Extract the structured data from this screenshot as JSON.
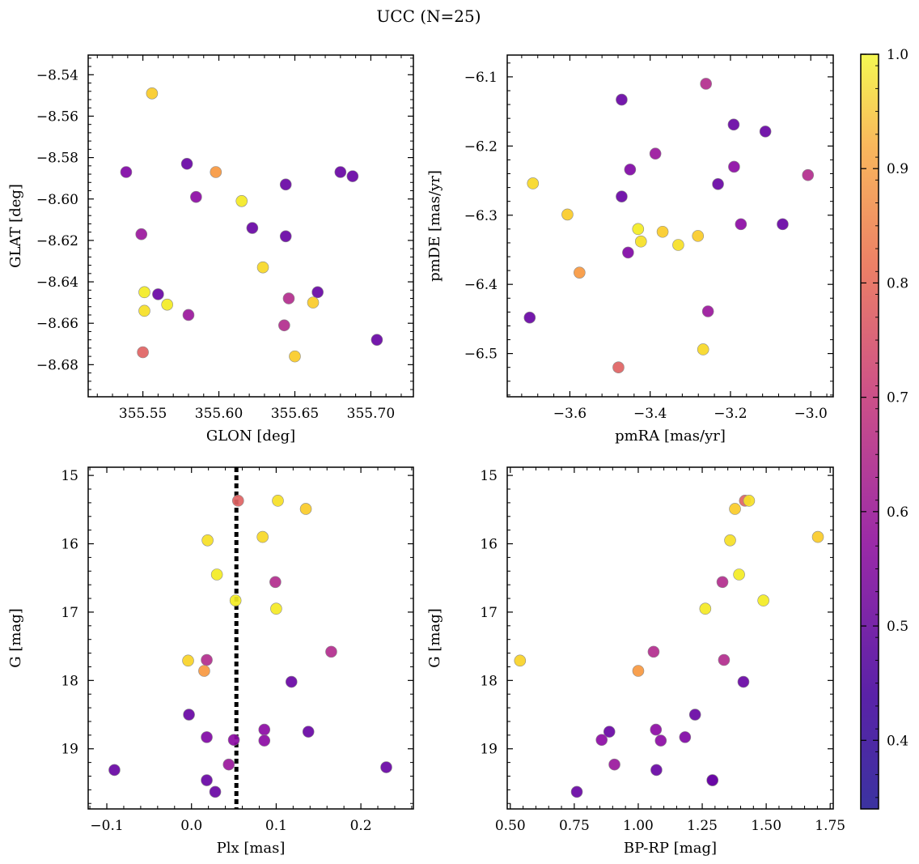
{
  "figure": {
    "title": "UCC (N=25)"
  },
  "colorbar": {
    "min": 0.34,
    "max": 1.0,
    "ticks": [
      "0.4",
      "0.5",
      "0.6",
      "0.7",
      "0.8",
      "0.9",
      "1.0"
    ],
    "colormap": "plasma"
  },
  "chart_data": [
    {
      "type": "scatter",
      "xlabel": "GLON [deg]",
      "ylabel": "GLAT [deg]",
      "xlim": [
        355.514,
        355.728
      ],
      "ylim": [
        -8.6955,
        -8.5305
      ],
      "xticks": [
        355.55,
        355.6,
        355.65,
        355.7
      ],
      "xticklabels": [
        "355.55",
        "355.60",
        "355.65",
        "355.70"
      ],
      "yticks": [
        -8.68,
        -8.66,
        -8.64,
        -8.62,
        -8.6,
        -8.58,
        -8.56,
        -8.54
      ],
      "yticklabels": [
        "−8.68",
        "−8.66",
        "−8.64",
        "−8.62",
        "−8.60",
        "−8.58",
        "−8.56",
        "−8.54"
      ],
      "x": [
        355.556,
        355.539,
        355.579,
        355.598,
        355.585,
        355.644,
        355.68,
        355.688,
        355.615,
        355.549,
        355.622,
        355.644,
        355.629,
        355.551,
        355.56,
        355.665,
        355.646,
        355.566,
        355.662,
        355.551,
        355.58,
        355.643,
        355.704,
        355.65,
        355.55
      ],
      "y": [
        -8.549,
        -8.587,
        -8.583,
        -8.587,
        -8.599,
        -8.593,
        -8.587,
        -8.589,
        -8.601,
        -8.617,
        -8.614,
        -8.618,
        -8.633,
        -8.645,
        -8.646,
        -8.645,
        -8.648,
        -8.651,
        -8.65,
        -8.654,
        -8.656,
        -8.661,
        -8.668,
        -8.676,
        -8.674
      ],
      "c": [
        0.86,
        0.42,
        0.38,
        0.75,
        0.44,
        0.38,
        0.38,
        0.38,
        0.95,
        0.47,
        0.38,
        0.38,
        0.9,
        0.96,
        0.38,
        0.38,
        0.52,
        0.96,
        0.86,
        0.92,
        0.47,
        0.52,
        0.38,
        0.86,
        0.64
      ]
    },
    {
      "type": "scatter",
      "xlabel": "pmRA [mas/yr]",
      "ylabel": "pmDE [mas/yr]",
      "xlim": [
        -3.756,
        -2.944
      ],
      "ylim": [
        -6.5625,
        -6.0685
      ],
      "xticks": [
        -3.6,
        -3.4,
        -3.2,
        -3.0
      ],
      "xticklabels": [
        "−3.6",
        "−3.4",
        "−3.2",
        "−3.0"
      ],
      "yticks": [
        -6.5,
        -6.4,
        -6.3,
        -6.2,
        -6.1
      ],
      "yticklabels": [
        "−6.5",
        "−6.4",
        "−6.3",
        "−6.2",
        "−6.1"
      ],
      "x": [
        -3.261,
        -3.471,
        -3.192,
        -3.113,
        -3.387,
        -3.191,
        -3.45,
        -3.007,
        -3.692,
        -3.231,
        -3.471,
        -3.606,
        -3.174,
        -3.07,
        -3.43,
        -3.369,
        -3.423,
        -3.33,
        -3.281,
        -3.455,
        -3.576,
        -3.256,
        -3.7,
        -3.268,
        -3.479
      ],
      "y": [
        -6.11,
        -6.133,
        -6.169,
        -6.179,
        -6.211,
        -6.23,
        -6.234,
        -6.242,
        -6.254,
        -6.255,
        -6.273,
        -6.299,
        -6.313,
        -6.313,
        -6.32,
        -6.324,
        -6.338,
        -6.343,
        -6.33,
        -6.354,
        -6.383,
        -6.439,
        -6.448,
        -6.494,
        -6.52
      ],
      "c": [
        0.52,
        0.38,
        0.38,
        0.38,
        0.47,
        0.44,
        0.42,
        0.52,
        0.9,
        0.38,
        0.38,
        0.86,
        0.44,
        0.38,
        0.96,
        0.86,
        0.92,
        0.92,
        0.86,
        0.42,
        0.75,
        0.47,
        0.38,
        0.9,
        0.64
      ]
    },
    {
      "type": "scatter",
      "xlabel": "Plx [mas]",
      "ylabel": "G [mag]",
      "xlim": [
        -0.122,
        0.262
      ],
      "ylim": [
        19.88,
        14.88
      ],
      "inverted_y": true,
      "vline": 0.053,
      "xticks": [
        -0.1,
        0.0,
        0.1,
        0.2
      ],
      "xticklabels": [
        "−0.1",
        "0.0",
        "0.1",
        "0.2"
      ],
      "yticks": [
        15,
        16,
        17,
        18,
        19
      ],
      "yticklabels": [
        "15",
        "16",
        "17",
        "18",
        "19"
      ],
      "x": [
        0.055,
        0.102,
        0.135,
        0.019,
        0.084,
        0.03,
        0.099,
        0.052,
        0.1,
        0.165,
        -0.004,
        0.018,
        0.015,
        0.118,
        -0.003,
        0.086,
        0.138,
        0.018,
        0.05,
        0.086,
        0.044,
        0.23,
        -0.091,
        0.018,
        0.028
      ],
      "y": [
        15.37,
        15.37,
        15.49,
        15.95,
        15.9,
        16.45,
        16.56,
        16.83,
        16.95,
        17.58,
        17.71,
        17.7,
        17.86,
        18.02,
        18.5,
        18.72,
        18.75,
        18.83,
        18.87,
        18.88,
        19.23,
        19.27,
        19.31,
        19.46,
        19.63
      ],
      "c": [
        0.64,
        0.92,
        0.86,
        0.92,
        0.9,
        0.96,
        0.52,
        0.96,
        0.95,
        0.52,
        0.88,
        0.52,
        0.75,
        0.38,
        0.38,
        0.44,
        0.38,
        0.42,
        0.44,
        0.44,
        0.47,
        0.38,
        0.38,
        0.38,
        0.38
      ]
    },
    {
      "type": "scatter",
      "xlabel": "BP-RP [mag]",
      "ylabel": "G [mag]",
      "xlim": [
        0.488,
        1.762
      ],
      "ylim": [
        19.88,
        14.88
      ],
      "inverted_y": true,
      "xticks": [
        0.5,
        0.75,
        1.0,
        1.25,
        1.5,
        1.75
      ],
      "xticklabels": [
        "0.50",
        "0.75",
        "1.00",
        "1.25",
        "1.50",
        "1.75"
      ],
      "yticks": [
        15,
        16,
        17,
        18,
        19
      ],
      "yticklabels": [
        "15",
        "16",
        "17",
        "18",
        "19"
      ],
      "x": [
        1.417,
        1.433,
        1.378,
        1.359,
        1.702,
        1.394,
        1.329,
        1.489,
        1.262,
        1.06,
        0.538,
        1.335,
        1.0,
        1.411,
        1.222,
        1.069,
        0.887,
        1.183,
        0.857,
        1.088,
        0.907,
        1.29,
        1.071,
        1.29,
        0.76
      ],
      "y": [
        15.37,
        15.37,
        15.49,
        15.95,
        15.9,
        16.45,
        16.56,
        16.83,
        16.95,
        17.58,
        17.71,
        17.7,
        17.86,
        18.02,
        18.5,
        18.72,
        18.75,
        18.83,
        18.87,
        18.88,
        19.23,
        19.46,
        19.31,
        19.46,
        19.63
      ],
      "c": [
        0.64,
        0.92,
        0.86,
        0.92,
        0.86,
        0.96,
        0.52,
        0.96,
        0.95,
        0.52,
        0.88,
        0.52,
        0.75,
        0.38,
        0.38,
        0.44,
        0.38,
        0.42,
        0.44,
        0.44,
        0.47,
        0.38,
        0.38,
        0.38,
        0.38
      ]
    }
  ]
}
